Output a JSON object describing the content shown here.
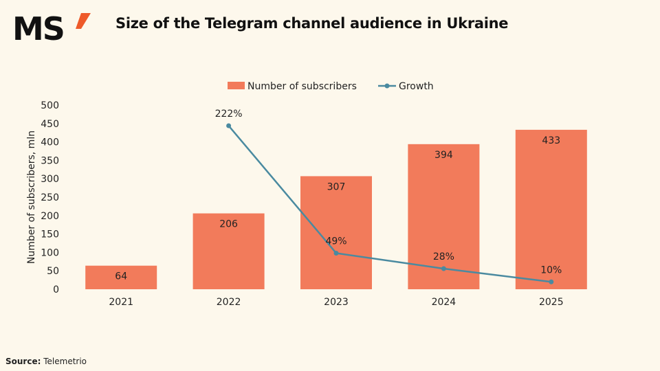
{
  "logo": {
    "text": "MS",
    "accent_color": "#ee5a2a"
  },
  "title": "Size of the Telegram channel audience in Ukraine",
  "source": {
    "label": "Source:",
    "value": "Telemetrio"
  },
  "chart_data": {
    "type": "bar+line",
    "title": "Size of the Telegram channel audience in Ukraine",
    "categories": [
      "2021",
      "2022",
      "2023",
      "2024",
      "2025"
    ],
    "ylabel": "Number of subscribers, mln",
    "ylim": [
      0,
      500
    ],
    "yticks": [
      0,
      50,
      100,
      150,
      200,
      250,
      300,
      350,
      400,
      450,
      500
    ],
    "y2lim": [
      0,
      250
    ],
    "grid": false,
    "legend_position": "top",
    "series": [
      {
        "name": "Number of subscribers",
        "type": "bar",
        "color": "#f27b5b",
        "values": [
          64,
          206,
          307,
          394,
          433
        ],
        "labels": [
          "64",
          "206",
          "307",
          "394",
          "433"
        ]
      },
      {
        "name": "Growth",
        "type": "line",
        "color": "#4a8aa0",
        "axis": "secondary",
        "values": [
          null,
          222,
          49,
          28,
          10
        ],
        "labels": [
          "",
          "222%",
          "49%",
          "28%",
          "10%"
        ]
      }
    ]
  }
}
